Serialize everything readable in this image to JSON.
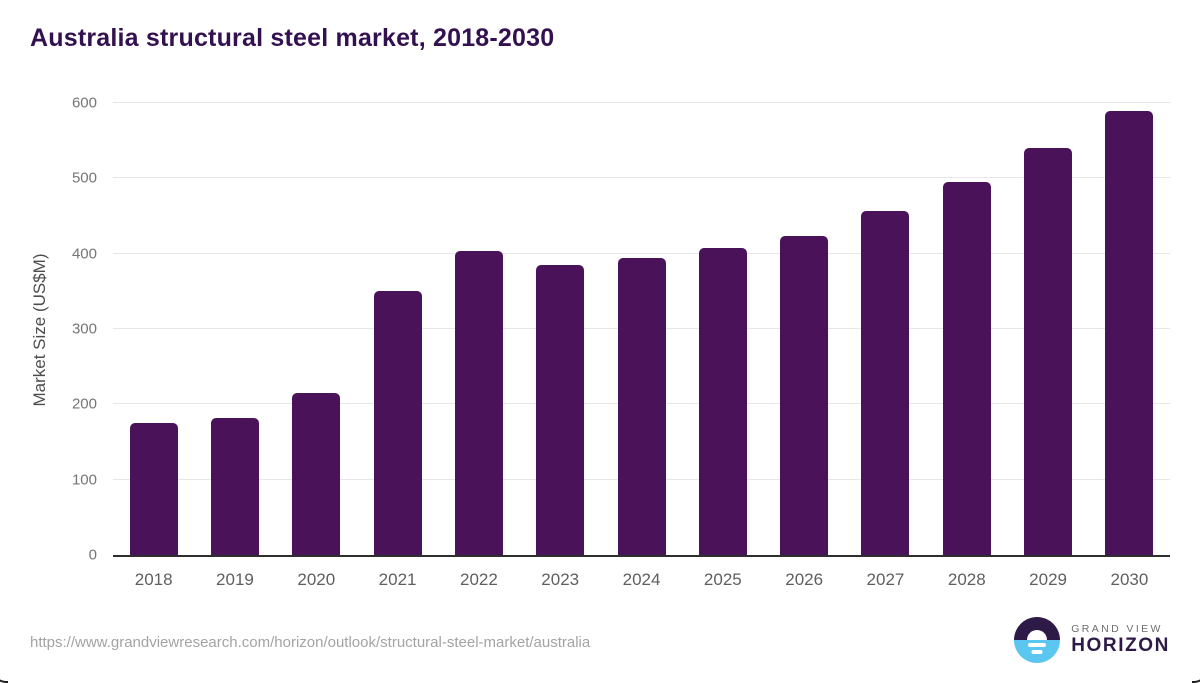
{
  "title": "Australia structural steel market, 2018-2030",
  "chart_data": {
    "type": "bar",
    "categories": [
      "2018",
      "2019",
      "2020",
      "2021",
      "2022",
      "2023",
      "2024",
      "2025",
      "2026",
      "2027",
      "2028",
      "2029",
      "2030"
    ],
    "values": [
      175,
      182,
      215,
      350,
      404,
      385,
      394,
      407,
      424,
      456,
      495,
      540,
      590
    ],
    "title": "Australia structural steel market, 2018-2030",
    "xlabel": "",
    "ylabel": "Market Size (US$M)",
    "ylim": [
      0,
      600
    ],
    "yticks": [
      0,
      100,
      200,
      300,
      400,
      500,
      600
    ],
    "grid": true,
    "legend": "none",
    "bar_color": "#4a1259"
  },
  "colors": {
    "title": "#33104f",
    "bar": "#4a1259",
    "axis_line": "#2e2e2e",
    "gridline": "#e7e7e7",
    "tick_label": "#757575",
    "x_label": "#5f5f5f",
    "y_axis_label": "#4d4d4d",
    "source_url": "#a3a3a3",
    "logo_dark_purple": "#2e1a47",
    "logo_light_blue": "#5bc6f0",
    "logo_gray": "#6e6e6e"
  },
  "footer": {
    "source_url": "https://www.grandviewresearch.com/horizon/outlook/structural-steel-market/australia",
    "logo": {
      "top_text": "GRAND VIEW",
      "bottom_text": "HORIZON"
    }
  }
}
